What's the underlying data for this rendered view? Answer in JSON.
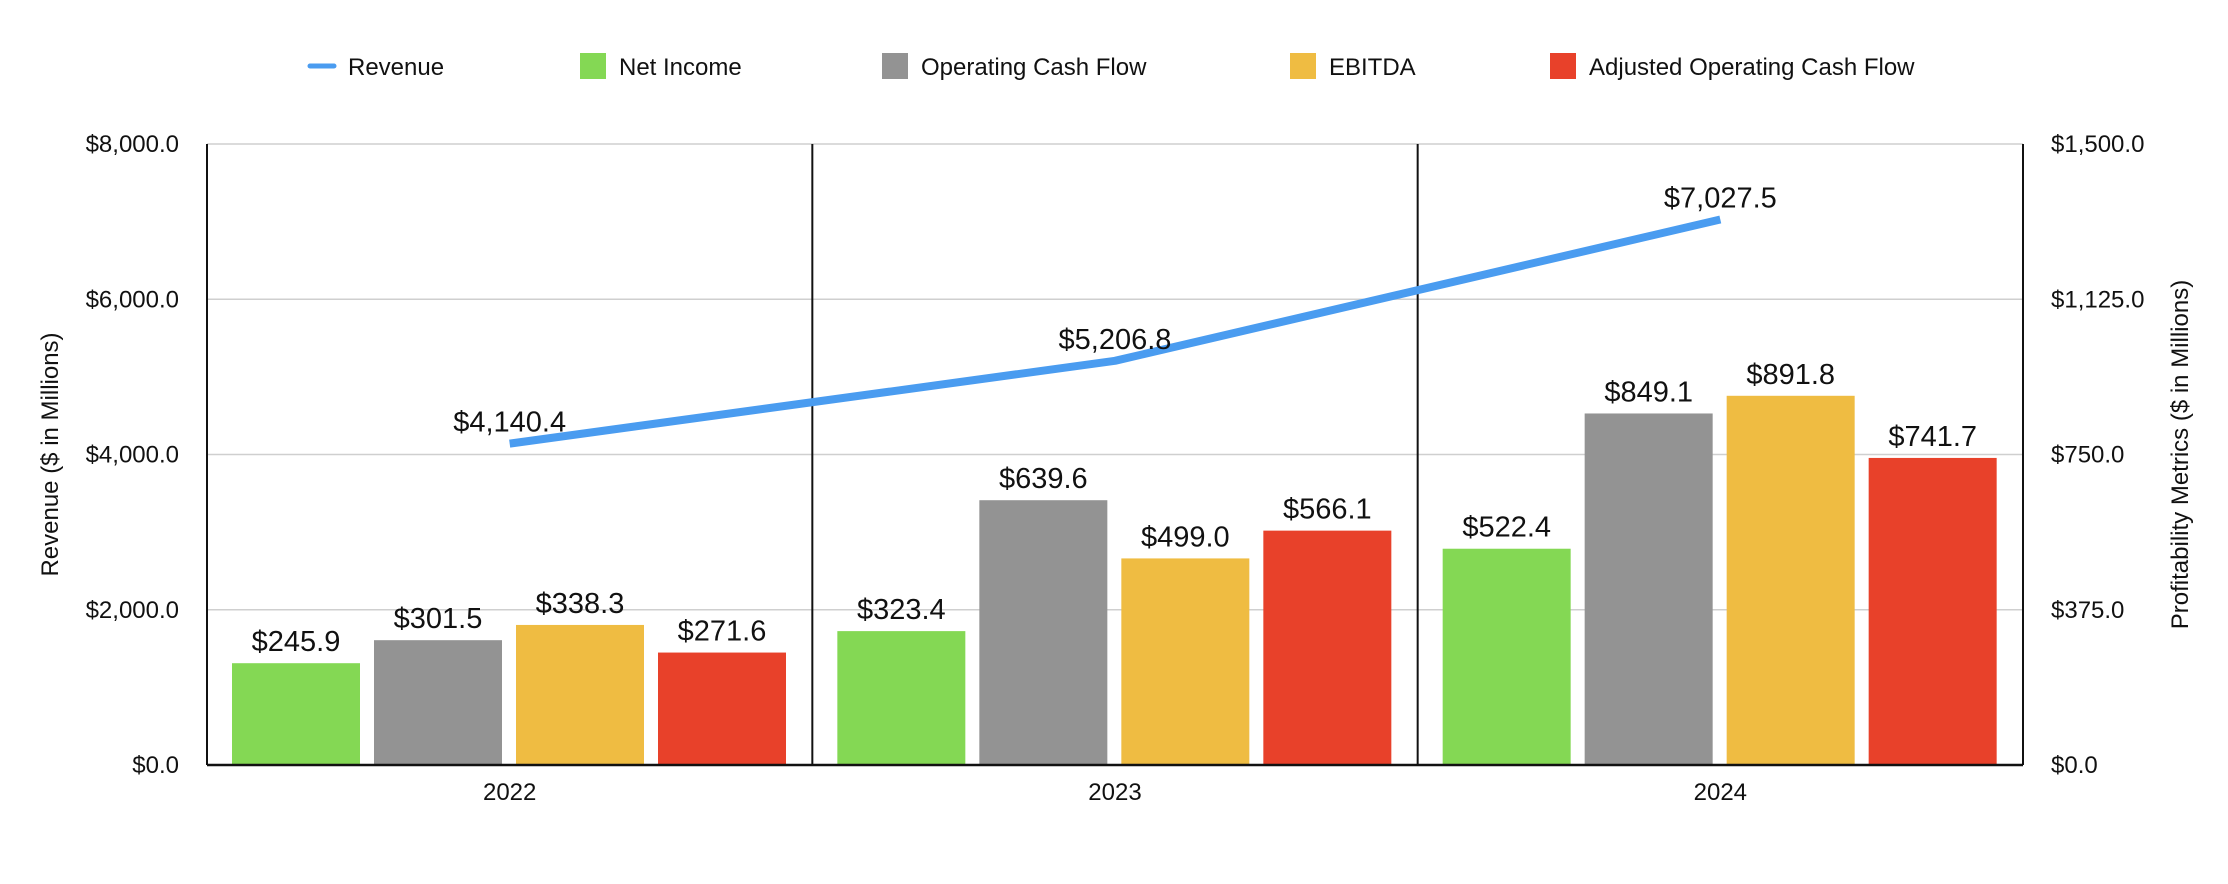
{
  "chart_data": {
    "type": "bar",
    "categories": [
      "2022",
      "2023",
      "2024"
    ],
    "series": [
      {
        "name": "Net Income",
        "color": "#84d854",
        "axis": "right",
        "values": [
          245.9,
          323.4,
          522.4
        ],
        "labels": [
          "$245.9",
          "$323.4",
          "$522.4"
        ]
      },
      {
        "name": "Operating Cash Flow",
        "color": "#939393",
        "axis": "right",
        "values": [
          301.5,
          639.6,
          849.1
        ],
        "labels": [
          "$301.5",
          "$639.6",
          "$849.1"
        ]
      },
      {
        "name": "EBITDA",
        "color": "#efbc42",
        "axis": "right",
        "values": [
          338.3,
          499.0,
          891.8
        ],
        "labels": [
          "$338.3",
          "$499.0",
          "$891.8"
        ]
      },
      {
        "name": "Adjusted Operating Cash Flow",
        "color": "#e8412a",
        "axis": "right",
        "values": [
          271.6,
          566.1,
          741.7
        ],
        "labels": [
          "$271.6",
          "$566.1",
          "$741.7"
        ]
      }
    ],
    "line_series": {
      "name": "Revenue",
      "color": "#4a9cf0",
      "axis": "left",
      "values": [
        4140.4,
        5206.8,
        7027.5
      ],
      "labels": [
        "$4,140.4",
        "$5,206.8",
        "$7,027.5"
      ]
    },
    "legend": {
      "placement": "top",
      "order": [
        "Revenue",
        "Net Income",
        "Operating Cash Flow",
        "EBITDA",
        "Adjusted Operating Cash Flow"
      ]
    },
    "y_left": {
      "label": "Revenue ($ in Millions)",
      "range": [
        0,
        8000
      ],
      "ticks": [
        0,
        2000,
        4000,
        6000,
        8000
      ],
      "tick_labels": [
        "$0.0",
        "$2,000.0",
        "$4,000.0",
        "$6,000.0",
        "$8,000.0"
      ]
    },
    "y_right": {
      "label": "Profitability Metrics ($ in Millions)",
      "range": [
        0,
        1500
      ],
      "ticks": [
        0,
        375,
        750,
        1125,
        1500
      ],
      "tick_labels": [
        "$0.0",
        "$375.0",
        "$750.0",
        "$1,125.0",
        "$1,500.0"
      ]
    },
    "grid": true,
    "title": "",
    "xlabel": ""
  }
}
